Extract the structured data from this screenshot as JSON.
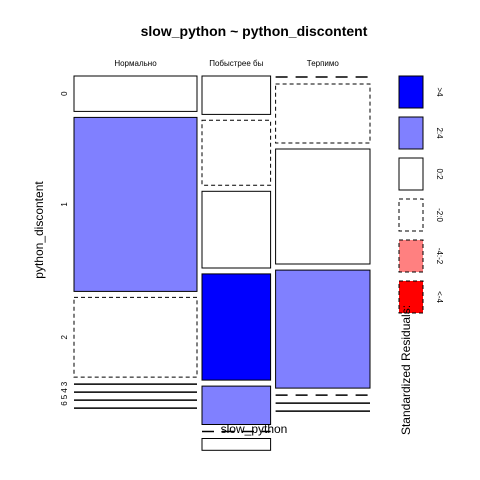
{
  "chart_data": {
    "type": "mosaic",
    "title": "slow_python ~ python_discontent",
    "xlabel": "slow_python",
    "ylabel": "python_discontent",
    "columns": [
      "Нормально",
      "Побыстрее бы",
      "Терпимо"
    ],
    "column_fractions": [
      0.43,
      0.24,
      0.33
    ],
    "row_labels": [
      "0",
      "1",
      "2",
      "3",
      "4",
      "5",
      "6"
    ],
    "cells": [
      {
        "column": "Нормально",
        "fractions": [
          0.12,
          0.59,
          0.27,
          0.005,
          0.005,
          0.005,
          0.005
        ],
        "residual_class": [
          "0:2",
          "2:4",
          "-2:0",
          "0:2",
          "0:2",
          "0:2",
          "0:2"
        ]
      },
      {
        "column": "Побыстрее бы",
        "fractions": [
          0.13,
          0.22,
          0.26,
          0.36,
          0.13,
          0.005,
          0.04
        ],
        "residual_class": [
          "0:2",
          "-2:0",
          "0:2",
          ">4",
          "2:4",
          "-2:0",
          "0:2"
        ]
      },
      {
        "column": "Терпимо",
        "fractions": [
          0.005,
          0.2,
          0.39,
          0.4,
          0.005,
          0.005,
          0.005
        ],
        "residual_class": [
          "-2:0",
          "-2:0",
          "0:2",
          "2:4",
          "-2:0",
          "0:2",
          "0:2"
        ]
      }
    ],
    "legend": {
      "title": "Standardized Residuals:",
      "entries": [
        {
          "label": ">4",
          "key": ">4"
        },
        {
          "label": "2:4",
          "key": "2:4"
        },
        {
          "label": "0:2",
          "key": "0:2"
        },
        {
          "label": "-2:0",
          "key": "-2:0"
        },
        {
          "label": "-4:-2",
          "key": "-4:-2"
        },
        {
          "label": "<-4",
          "key": "<-4"
        }
      ]
    },
    "colors": {
      ">4": "#0000ff",
      "2:4": "#8080ff",
      "0:2": "#ffffff",
      "-2:0": "#ffffff",
      "-4:-2": "#ff8080",
      "<-4": "#ff0000"
    },
    "dashed_keys": [
      "-2:0",
      "-4:-2",
      "<-4"
    ]
  }
}
